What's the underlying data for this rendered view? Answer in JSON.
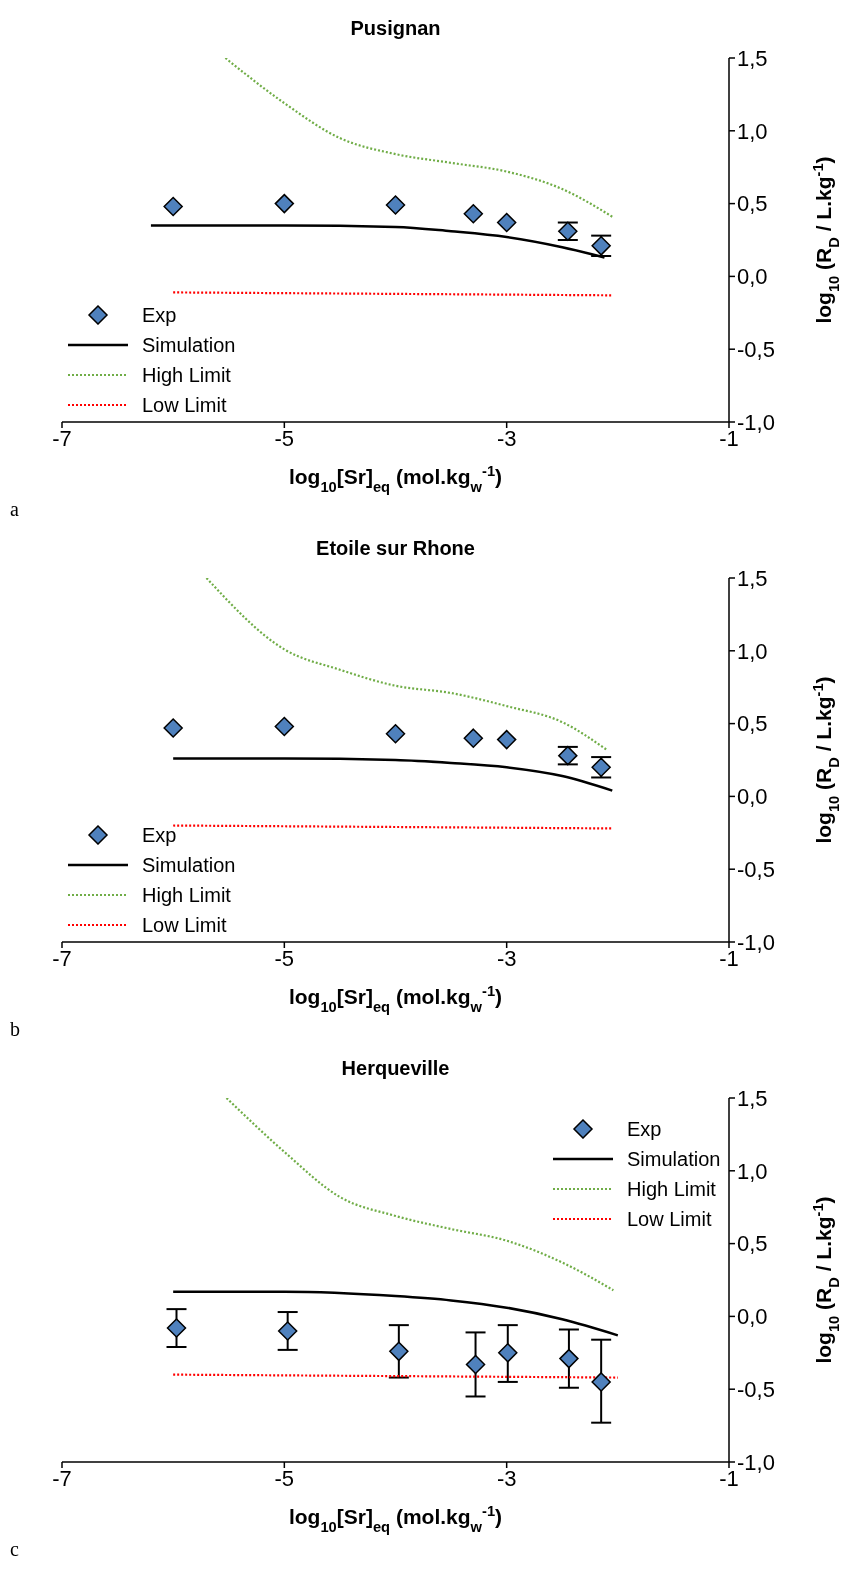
{
  "chart_data": [
    {
      "type": "line",
      "title": "Pusignan",
      "xlabel": "log$_{10}$[Sr]$_{eq}$ (mol.kg$_{w}$$^{-1}$)",
      "ylabel": "log$_{10}$ (R$_{D}$ / L.kg$^{-1}$)",
      "annotations": [
        "a"
      ],
      "xlim": [
        -7,
        -1
      ],
      "xticks": [
        -7,
        -5,
        -3,
        -1
      ],
      "ylim": [
        -1,
        1.5
      ],
      "yticks": [
        {
          "value": -1,
          "label": "-1,0"
        },
        {
          "value": -0.5,
          "label": "-0,5"
        },
        {
          "value": 0,
          "label": "0,0"
        },
        {
          "value": 0.5,
          "label": "0,5"
        },
        {
          "value": 1,
          "label": "1,0"
        },
        {
          "value": 1.5,
          "label": "1,5"
        }
      ],
      "grid": false,
      "legend": "bottom left",
      "series": [
        {
          "name": "Exp",
          "type": "scatter",
          "marker": "diamond",
          "color": "#4f81bd",
          "x": [
            -6,
            -5,
            -4,
            -3.3,
            -3,
            -2.45,
            -2.15
          ],
          "values": [
            0.48,
            0.5,
            0.49,
            0.43,
            0.37,
            0.31,
            0.21
          ],
          "errors": [
            null,
            null,
            null,
            null,
            null,
            0.06,
            0.07
          ]
        },
        {
          "name": "Simulation",
          "marker": "none",
          "line_style": "solid",
          "color": "#000000",
          "x": [
            -6.2,
            -5,
            -4,
            -3.5,
            -3,
            -2.5,
            -2.12
          ],
          "values": [
            0.35,
            0.35,
            0.34,
            0.31,
            0.27,
            0.2,
            0.13
          ]
        },
        {
          "name": "High Limit",
          "marker": "none",
          "line_style": "dotted",
          "color": "#70ad47",
          "x": [
            -5.53,
            -5,
            -4.5,
            -4,
            -3.5,
            -3,
            -2.5,
            -2.05
          ],
          "values": [
            1.5,
            1.19,
            0.95,
            0.84,
            0.78,
            0.72,
            0.6,
            0.41
          ]
        },
        {
          "name": "Low Limit",
          "marker": "none",
          "line_style": "dotted",
          "color": "#ff0000",
          "x": [
            -6,
            -2.05
          ],
          "values": [
            -0.11,
            -0.13
          ]
        }
      ]
    },
    {
      "type": "line",
      "title": "Etoile sur Rhone",
      "xlabel": "log$_{10}$[Sr]$_{eq}$ (mol.kg$_{w}$$^{-1}$)",
      "ylabel": "log$_{10}$ (R$_{D}$ / L.kg$^{-1}$)",
      "annotations": [
        "b"
      ],
      "xlim": [
        -7,
        -1
      ],
      "xticks": [
        -7,
        -5,
        -3,
        -1
      ],
      "ylim": [
        -1,
        1.5
      ],
      "yticks": [
        {
          "value": -1,
          "label": "-1,0"
        },
        {
          "value": -0.5,
          "label": "-0,5"
        },
        {
          "value": 0,
          "label": "0,0"
        },
        {
          "value": 0.5,
          "label": "0,5"
        },
        {
          "value": 1,
          "label": "1,0"
        },
        {
          "value": 1.5,
          "label": "1,5"
        }
      ],
      "grid": false,
      "legend": "bottom left",
      "series": [
        {
          "name": "Exp",
          "type": "scatter",
          "marker": "diamond",
          "color": "#4f81bd",
          "x": [
            -6,
            -5,
            -4,
            -3.3,
            -3,
            -2.45,
            -2.15
          ],
          "values": [
            0.47,
            0.48,
            0.43,
            0.4,
            0.39,
            0.28,
            0.2
          ],
          "errors": [
            null,
            null,
            null,
            null,
            null,
            0.06,
            0.07
          ]
        },
        {
          "name": "Simulation",
          "marker": "none",
          "line_style": "solid",
          "color": "#000000",
          "x": [
            -6,
            -5,
            -4,
            -3.5,
            -3,
            -2.5,
            -2.05
          ],
          "values": [
            0.26,
            0.26,
            0.25,
            0.23,
            0.2,
            0.14,
            0.04
          ]
        },
        {
          "name": "High Limit",
          "marker": "none",
          "line_style": "dotted",
          "color": "#70ad47",
          "x": [
            -5.7,
            -5,
            -4.5,
            -4,
            -3.5,
            -3,
            -2.5,
            -2.1
          ],
          "values": [
            1.5,
            1.01,
            0.87,
            0.76,
            0.71,
            0.62,
            0.51,
            0.32
          ]
        },
        {
          "name": "Low Limit",
          "marker": "none",
          "line_style": "dotted",
          "color": "#ff0000",
          "x": [
            -6,
            -2.05
          ],
          "values": [
            -0.2,
            -0.22
          ]
        }
      ]
    },
    {
      "type": "line",
      "title": "Herqueville",
      "xlabel": "log$_{10}$[Sr]$_{eq}$ (mol.kg$_{w}$$^{-1}$)",
      "ylabel": "log$_{10}$ (R$_{D}$ / L.kg$^{-1}$)",
      "annotations": [
        "c"
      ],
      "xlim": [
        -7,
        -1
      ],
      "xticks": [
        -7,
        -5,
        -3,
        -1
      ],
      "ylim": [
        -1,
        1.5
      ],
      "yticks": [
        {
          "value": -1,
          "label": "-1,0"
        },
        {
          "value": -0.5,
          "label": "-0,5"
        },
        {
          "value": 0,
          "label": "0,0"
        },
        {
          "value": 0.5,
          "label": "0,5"
        },
        {
          "value": 1,
          "label": "1,0"
        },
        {
          "value": 1.5,
          "label": "1,5"
        }
      ],
      "grid": false,
      "legend": "top right",
      "series": [
        {
          "name": "Exp",
          "type": "scatter",
          "marker": "diamond",
          "color": "#4f81bd",
          "x": [
            -5.97,
            -4.97,
            -3.97,
            -3.28,
            -2.99,
            -2.44,
            -2.15
          ],
          "values": [
            -0.08,
            -0.1,
            -0.24,
            -0.33,
            -0.25,
            -0.29,
            -0.45
          ],
          "errors": [
            [
              -0.21,
              0.05
            ],
            [
              -0.23,
              0.03
            ],
            [
              -0.42,
              -0.06
            ],
            [
              -0.55,
              -0.11
            ],
            [
              -0.45,
              -0.06
            ],
            [
              -0.49,
              -0.09
            ],
            [
              -0.73,
              -0.16
            ]
          ]
        },
        {
          "name": "Simulation",
          "marker": "none",
          "line_style": "solid",
          "color": "#000000",
          "x": [
            -6,
            -5,
            -4,
            -3.5,
            -3,
            -2.5,
            -2.0
          ],
          "values": [
            0.17,
            0.17,
            0.14,
            0.11,
            0.06,
            -0.02,
            -0.13
          ]
        },
        {
          "name": "High Limit",
          "marker": "none",
          "line_style": "dotted",
          "color": "#70ad47",
          "x": [
            -5.52,
            -5,
            -4.5,
            -4,
            -3.5,
            -3,
            -2.5,
            -2.04
          ],
          "values": [
            1.5,
            1.13,
            0.82,
            0.69,
            0.6,
            0.52,
            0.37,
            0.18
          ]
        },
        {
          "name": "Low Limit",
          "marker": "none",
          "line_style": "dotted",
          "color": "#ff0000",
          "x": [
            -6,
            -2.0
          ],
          "values": [
            -0.4,
            -0.42
          ]
        }
      ]
    }
  ]
}
